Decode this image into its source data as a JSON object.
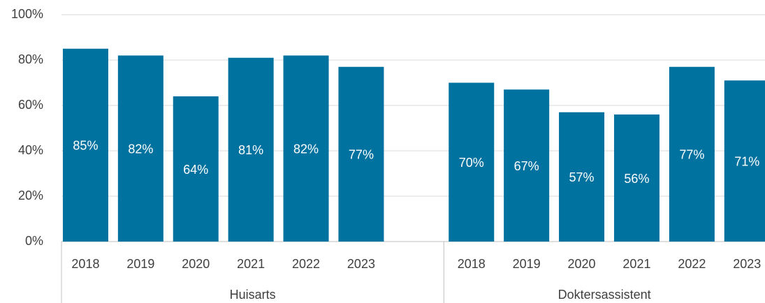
{
  "chart_data": {
    "type": "bar",
    "color": "#0072a0",
    "grid": true,
    "ylim": [
      0,
      100
    ],
    "yticks": [
      {
        "value": 0,
        "label": "0%"
      },
      {
        "value": 20,
        "label": "20%"
      },
      {
        "value": 40,
        "label": "40%"
      },
      {
        "value": 60,
        "label": "60%"
      },
      {
        "value": 80,
        "label": "80%"
      },
      {
        "value": 100,
        "label": "100%"
      }
    ],
    "groups": [
      {
        "name": "Huisarts",
        "categories": [
          "2018",
          "2019",
          "2020",
          "2021",
          "2022",
          "2023"
        ],
        "values": [
          85,
          82,
          64,
          81,
          82,
          77
        ],
        "value_labels": [
          "85%",
          "82%",
          "64%",
          "81%",
          "82%",
          "77%"
        ]
      },
      {
        "name": "Doktersassistent",
        "categories": [
          "2018",
          "2019",
          "2020",
          "2021",
          "2022",
          "2023"
        ],
        "values": [
          70,
          67,
          57,
          56,
          77,
          71
        ],
        "value_labels": [
          "70%",
          "67%",
          "57%",
          "56%",
          "77%",
          "71%"
        ]
      }
    ]
  }
}
